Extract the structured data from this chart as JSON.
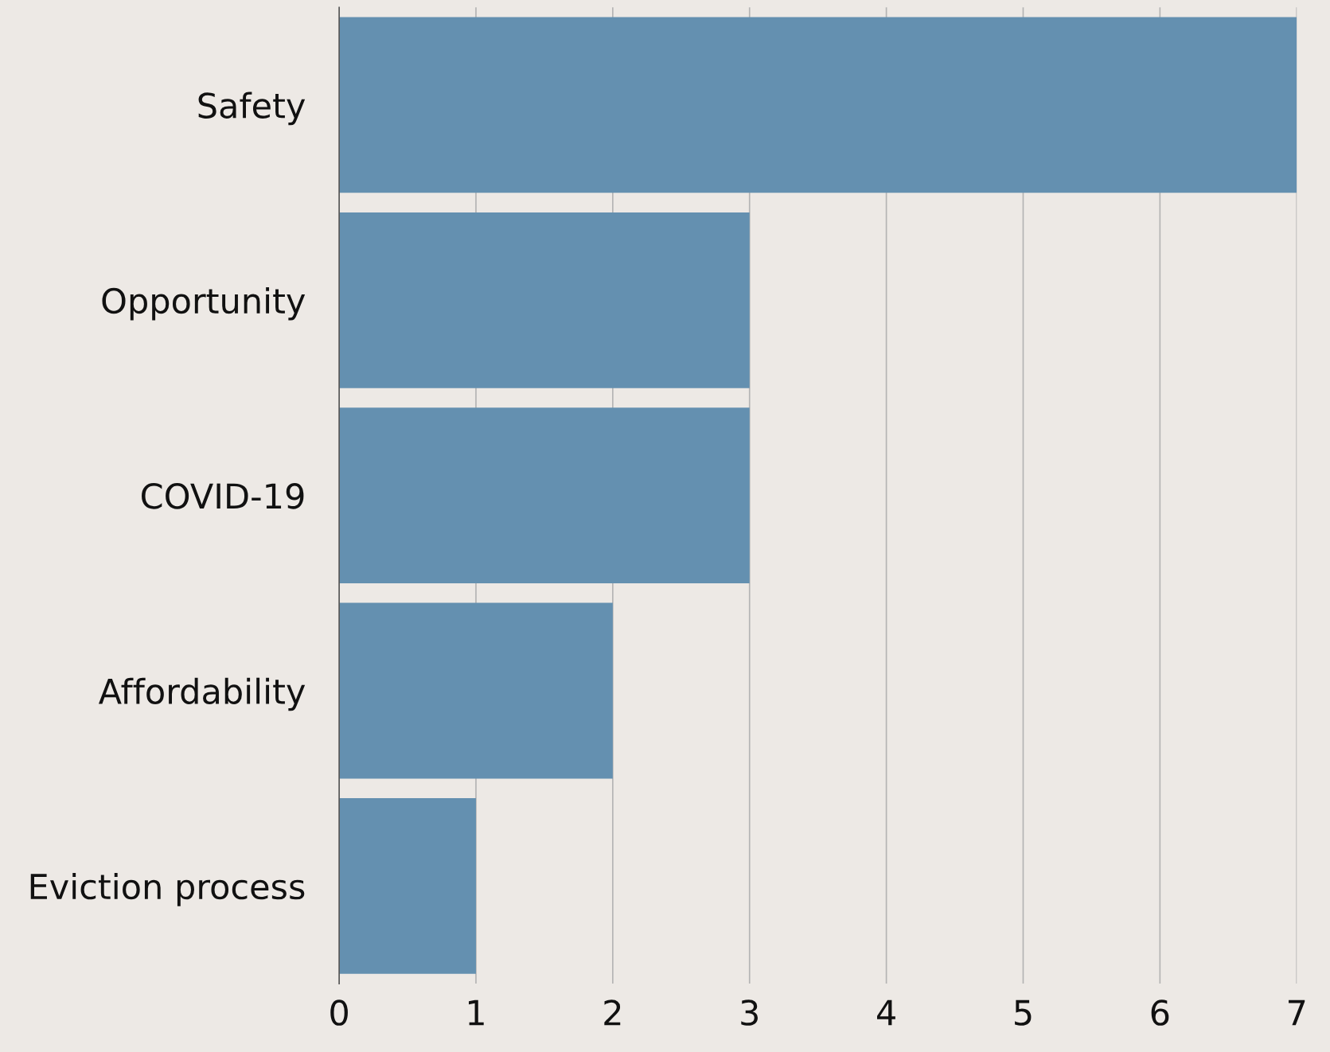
{
  "chart_data": {
    "type": "bar",
    "orientation": "horizontal",
    "categories": [
      "Safety",
      "Opportunity",
      "COVID-19",
      "Affordability",
      "Eviction process"
    ],
    "values": [
      7,
      3,
      3,
      2,
      1
    ],
    "color": "#6490b0",
    "xlim": [
      0,
      7
    ],
    "xticks": [
      0,
      1,
      2,
      3,
      4,
      5,
      6,
      7
    ],
    "grid": "x"
  }
}
